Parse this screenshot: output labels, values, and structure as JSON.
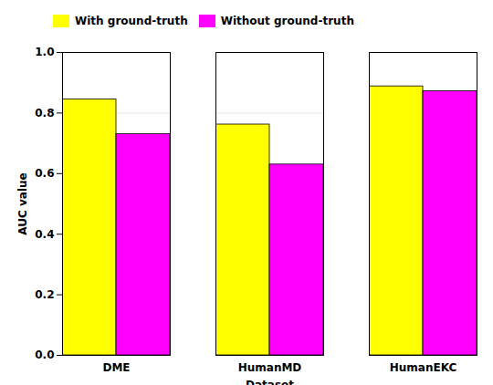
{
  "chart_data": {
    "type": "bar",
    "xlabel": "Dataset",
    "ylabel": "AUC value",
    "categories": [
      "DME",
      "HumanMD",
      "HumanEKC"
    ],
    "series": [
      {
        "name": "With ground-truth",
        "color": "#ffff00",
        "values": [
          0.845,
          0.762,
          0.888
        ]
      },
      {
        "name": "Without ground-truth",
        "color": "#ff00ff",
        "values": [
          0.73,
          0.63,
          0.872
        ]
      }
    ],
    "ylim": [
      0,
      1.0
    ],
    "yticks": [
      {
        "value": 0,
        "label": "0.0"
      },
      0.2,
      0.4,
      0.6,
      0.8,
      {
        "value": 1.0,
        "label": "1.0"
      }
    ],
    "grid": true,
    "legend": "upper left"
  }
}
